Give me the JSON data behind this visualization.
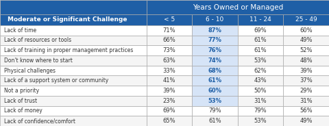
{
  "title": "Years Owned or Managed",
  "header_bg": "#1f5fa6",
  "header_text_color": "#ffffff",
  "col_header": "Moderate or Significant Challenge",
  "columns": [
    "< 5",
    "6 - 10",
    "11 - 24",
    "25 - 49"
  ],
  "rows": [
    {
      "label": "Lack of time",
      "values": [
        "71%",
        "87%",
        "69%",
        "60%"
      ],
      "highlight": 1
    },
    {
      "label": "Lack of resources or tools",
      "values": [
        "66%",
        "77%",
        "61%",
        "49%"
      ],
      "highlight": 1
    },
    {
      "label": "Lack of training in proper management practices",
      "values": [
        "73%",
        "76%",
        "61%",
        "52%"
      ],
      "highlight": 1
    },
    {
      "label": "Don't know where to start",
      "values": [
        "63%",
        "74%",
        "53%",
        "48%"
      ],
      "highlight": 1
    },
    {
      "label": "Physical challenges",
      "values": [
        "33%",
        "68%",
        "62%",
        "39%"
      ],
      "highlight": 1
    },
    {
      "label": "Lack of a support system or community",
      "values": [
        "41%",
        "61%",
        "43%",
        "37%"
      ],
      "highlight": 1
    },
    {
      "label": "Not a priority",
      "values": [
        "39%",
        "60%",
        "50%",
        "29%"
      ],
      "highlight": 1
    },
    {
      "label": "Lack of trust",
      "values": [
        "23%",
        "53%",
        "31%",
        "31%"
      ],
      "highlight": 1
    },
    {
      "label": "Lack of money",
      "values": [
        "69%",
        "79%",
        "79%",
        "56%"
      ],
      "highlight": -1
    },
    {
      "label": "Lack of confidence/comfort",
      "values": [
        "65%",
        "61%",
        "53%",
        "49%"
      ],
      "highlight": -1
    }
  ],
  "highlight_col_bg": "#d6e4f7",
  "highlight_text_color": "#1f5fa6",
  "normal_text_color": "#333333",
  "row_bg_even": "#ffffff",
  "row_bg_odd": "#f5f5f5",
  "border_color": "#aaaaaa",
  "label_text_color": "#333333"
}
